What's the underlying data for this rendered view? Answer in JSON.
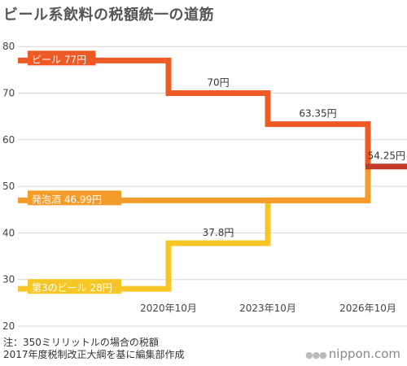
{
  "chart_data": {
    "type": "line",
    "step": true,
    "title": "ビール系飲料の税額統一の道筋",
    "ylim": [
      20,
      83
    ],
    "y_ticks": [
      20,
      30,
      40,
      50,
      60,
      70,
      80
    ],
    "x_ticks": [
      "2020年10月",
      "2023年10月",
      "2026年10月"
    ],
    "grid": true,
    "series": [
      {
        "name": "ビール",
        "legend_label": "ビール 77円",
        "color": "#ee5a24",
        "values": [
          77,
          70,
          63.35,
          54.25
        ]
      },
      {
        "name": "発泡酒",
        "legend_label": "発泡酒 46.99円",
        "color": "#f39c2c",
        "values": [
          46.99,
          46.99,
          46.99,
          54.25
        ]
      },
      {
        "name": "第3のビール",
        "legend_label": "第3のビール 28円",
        "color": "#f6c627",
        "values": [
          28,
          37.8,
          46.99,
          54.25
        ]
      }
    ],
    "unified_color": "#c0392b",
    "annotations": [
      {
        "text": "70円",
        "series": 0,
        "segment": 1
      },
      {
        "text": "63.35円",
        "series": 0,
        "segment": 2
      },
      {
        "text": "37.8円",
        "series": 2,
        "segment": 1
      },
      {
        "text": "54.25円",
        "series": 0,
        "segment": 3
      }
    ],
    "footnotes": [
      "注：350ミリリットルの場合の税額",
      "2017年度税制改正大綱を基に編集部作成"
    ]
  },
  "branding": {
    "dots": "●●●",
    "text": "nippon.com"
  }
}
